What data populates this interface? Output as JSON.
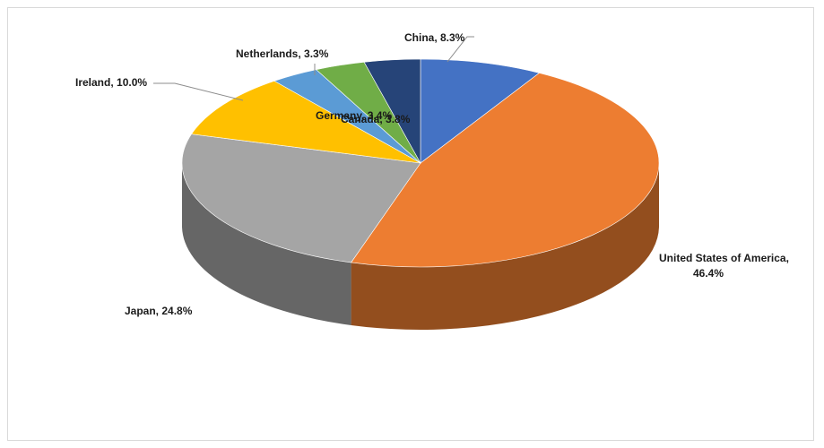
{
  "chart_data": {
    "type": "pie",
    "style": "3d",
    "title": "",
    "slices": [
      {
        "label": "China",
        "value": 8.3,
        "display": "China, 8.3%",
        "color": "#4472C4"
      },
      {
        "label": "United States of America",
        "value": 46.4,
        "display": "United States of America,",
        "display2": "46.4%",
        "color": "#ED7D31"
      },
      {
        "label": "Japan",
        "value": 24.8,
        "display": "Japan, 24.8%",
        "color": "#A5A5A5"
      },
      {
        "label": "Ireland",
        "value": 10.0,
        "display": "Ireland, 10.0%",
        "color": "#FFC000"
      },
      {
        "label": "Netherlands",
        "value": 3.3,
        "display": "Netherlands, 3.3%",
        "color": "#5B9BD5"
      },
      {
        "label": "Germany",
        "value": 3.4,
        "display": "Germany, 3.4%",
        "color": "#70AD47"
      },
      {
        "label": "Canada",
        "value": 3.8,
        "display": "Canada, 3.8%",
        "color": "#264478"
      }
    ],
    "legend": "none"
  }
}
